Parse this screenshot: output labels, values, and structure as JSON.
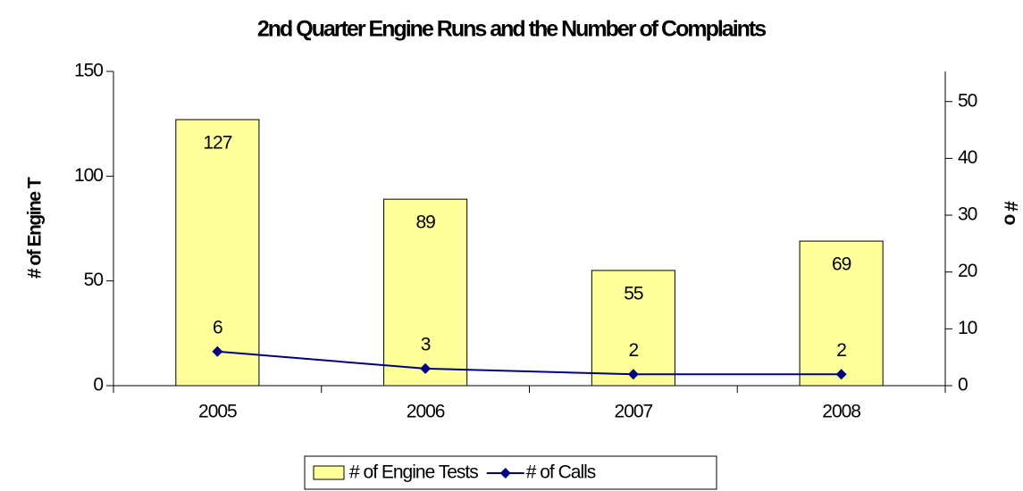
{
  "chart_data": {
    "type": "bar",
    "title": "2nd Quarter Engine Runs and the Number of Complaints",
    "y_label": "# of Engine T",
    "y2_label": "# o",
    "categories": [
      "2005",
      "2006",
      "2007",
      "2008"
    ],
    "series": [
      {
        "name": "# of Engine Tests",
        "type": "bar",
        "color": "#ffff99",
        "values": [
          127,
          89,
          55,
          69
        ]
      },
      {
        "name": "# of Calls",
        "type": "line",
        "color": "#000080",
        "axis": "y2",
        "values": [
          6,
          3,
          2,
          2
        ]
      }
    ],
    "ylim": [
      0,
      150
    ],
    "yticks": [
      0,
      50,
      100,
      150
    ],
    "y2lim": [
      0,
      55.3
    ],
    "y2ticks": [
      0,
      10,
      20,
      30,
      40,
      50
    ],
    "legend": "bottom"
  }
}
